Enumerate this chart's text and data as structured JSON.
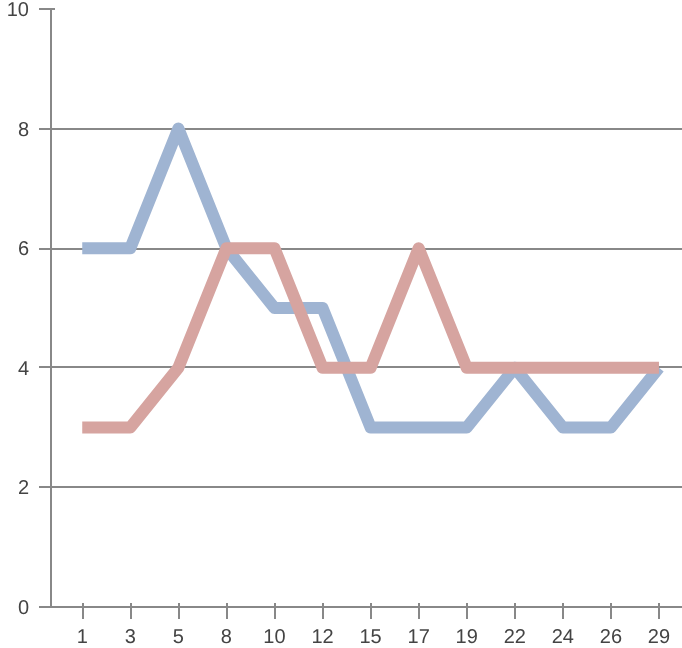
{
  "chart_data": {
    "type": "line",
    "categories": [
      "1",
      "3",
      "5",
      "8",
      "10",
      "12",
      "15",
      "17",
      "19",
      "22",
      "24",
      "26",
      "29"
    ],
    "series": [
      {
        "color": "#9fb4d2",
        "values": [
          6,
          6,
          8,
          6,
          5,
          5,
          3,
          3,
          3,
          4,
          3,
          3,
          4
        ]
      },
      {
        "color": "#d6a4a0",
        "values": [
          3,
          3,
          4,
          6,
          6,
          4,
          4,
          6,
          4,
          4,
          4,
          4,
          4
        ]
      }
    ],
    "ylim": [
      0,
      10
    ],
    "yticks": [
      0,
      2,
      4,
      6,
      8,
      10
    ],
    "grid": "y",
    "marker": "none",
    "line_style": "solid"
  }
}
